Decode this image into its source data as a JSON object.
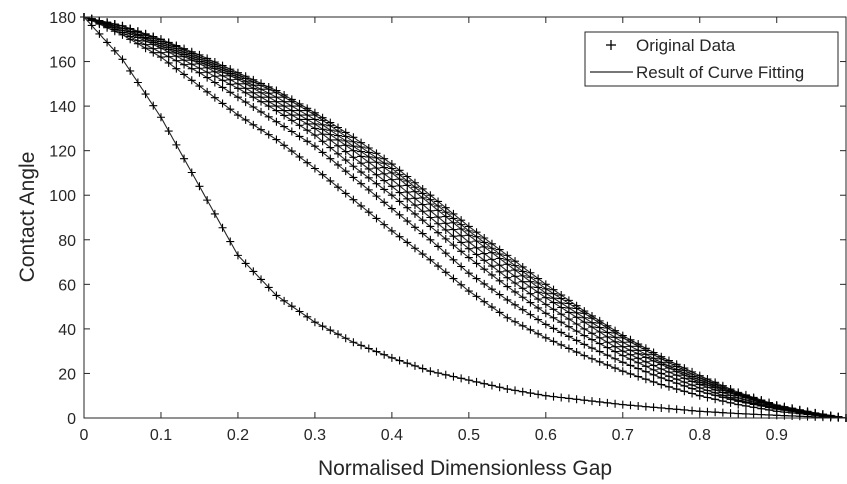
{
  "chart_data": {
    "type": "line",
    "title": "",
    "xlabel": "Normalised Dimensionless Gap",
    "ylabel": "Contact Angle",
    "xlim": [
      0,
      0.99
    ],
    "ylim": [
      0,
      180
    ],
    "xticks": [
      0,
      0.1,
      0.2,
      0.3,
      0.4,
      0.5,
      0.6,
      0.7,
      0.8,
      0.9
    ],
    "xtick_labels": [
      "0",
      "0.1",
      "0.2",
      "0.3",
      "0.4",
      "0.5",
      "0.6",
      "0.7",
      "0.8",
      "0.9"
    ],
    "yticks": [
      0,
      20,
      40,
      60,
      80,
      100,
      120,
      140,
      160,
      180
    ],
    "ytick_labels": [
      "0",
      "20",
      "40",
      "60",
      "80",
      "100",
      "120",
      "140",
      "160",
      "180"
    ],
    "grid": false,
    "legend_position": "top-right",
    "legend": [
      {
        "label": "Original Data",
        "marker": "+"
      },
      {
        "label": "Result of Curve Fitting",
        "marker": "line"
      }
    ],
    "colors": {
      "data": "#000000",
      "fit": "#262626",
      "axes": "#262626"
    },
    "series": [
      {
        "x": [
          0,
          0.05,
          0.1,
          0.15,
          0.2,
          0.25,
          0.3,
          0.35,
          0.4,
          0.45,
          0.5,
          0.55,
          0.6,
          0.65,
          0.7,
          0.75,
          0.8,
          0.85,
          0.9,
          0.95,
          0.99
        ],
        "y": [
          180,
          161,
          135,
          104,
          73,
          55,
          43,
          34,
          27,
          21,
          17,
          13,
          10,
          8,
          6,
          4.5,
          3,
          2,
          1.2,
          0.5,
          0
        ]
      },
      {
        "x": [
          0,
          0.05,
          0.1,
          0.15,
          0.2,
          0.25,
          0.3,
          0.35,
          0.4,
          0.45,
          0.5,
          0.55,
          0.6,
          0.65,
          0.7,
          0.75,
          0.8,
          0.85,
          0.9,
          0.95,
          0.99
        ],
        "y": [
          180,
          172,
          162,
          149,
          136,
          125,
          112,
          98,
          84,
          71,
          57,
          45,
          36,
          28,
          21,
          15,
          10,
          6,
          3,
          1.2,
          0
        ]
      },
      {
        "x": [
          0,
          0.05,
          0.1,
          0.15,
          0.2,
          0.25,
          0.3,
          0.35,
          0.4,
          0.45,
          0.5,
          0.55,
          0.6,
          0.65,
          0.7,
          0.75,
          0.8,
          0.85,
          0.9,
          0.95,
          0.99
        ],
        "y": [
          180,
          173,
          164,
          155,
          144,
          133,
          122,
          108,
          94,
          80,
          65,
          53,
          42,
          33,
          25,
          18,
          12,
          7.5,
          4,
          1.5,
          0
        ]
      },
      {
        "x": [
          0,
          0.05,
          0.1,
          0.15,
          0.2,
          0.25,
          0.3,
          0.35,
          0.4,
          0.45,
          0.5,
          0.55,
          0.6,
          0.65,
          0.7,
          0.75,
          0.8,
          0.85,
          0.9,
          0.95,
          0.99
        ],
        "y": [
          180,
          174,
          166,
          157,
          148,
          138,
          127,
          113,
          100,
          86,
          72,
          59,
          47,
          37,
          28,
          20,
          13.5,
          8,
          4.2,
          1.7,
          0
        ]
      },
      {
        "x": [
          0,
          0.05,
          0.1,
          0.15,
          0.2,
          0.25,
          0.3,
          0.35,
          0.4,
          0.45,
          0.5,
          0.55,
          0.6,
          0.65,
          0.7,
          0.75,
          0.8,
          0.85,
          0.9,
          0.95,
          0.99
        ],
        "y": [
          180,
          175,
          167,
          159,
          150,
          140,
          130,
          117,
          104,
          90,
          76,
          63,
          51,
          40,
          30,
          22,
          15,
          9,
          4.5,
          1.8,
          0
        ]
      },
      {
        "x": [
          0,
          0.05,
          0.1,
          0.15,
          0.2,
          0.25,
          0.3,
          0.35,
          0.4,
          0.45,
          0.5,
          0.55,
          0.6,
          0.65,
          0.7,
          0.75,
          0.8,
          0.85,
          0.9,
          0.95,
          0.99
        ],
        "y": [
          180,
          175,
          168,
          160,
          152,
          142,
          132,
          120,
          107,
          93,
          79,
          66,
          54,
          43,
          32,
          24,
          16,
          10,
          5,
          2,
          0
        ]
      },
      {
        "x": [
          0,
          0.05,
          0.1,
          0.15,
          0.2,
          0.25,
          0.3,
          0.35,
          0.4,
          0.45,
          0.5,
          0.55,
          0.6,
          0.65,
          0.7,
          0.75,
          0.8,
          0.85,
          0.9,
          0.95,
          0.99
        ],
        "y": [
          180,
          176,
          169,
          161,
          153,
          144,
          134,
          122,
          110,
          96,
          82,
          69,
          56,
          45,
          34,
          25,
          17,
          10.5,
          5.3,
          2.1,
          0
        ]
      },
      {
        "x": [
          0,
          0.05,
          0.1,
          0.15,
          0.2,
          0.25,
          0.3,
          0.35,
          0.4,
          0.45,
          0.5,
          0.55,
          0.6,
          0.65,
          0.7,
          0.75,
          0.8,
          0.85,
          0.9,
          0.95,
          0.99
        ],
        "y": [
          180,
          176,
          170,
          162,
          154,
          146,
          136,
          124,
          112,
          98,
          84,
          71,
          58,
          47,
          36,
          26.5,
          18,
          11,
          5.6,
          2.2,
          0
        ]
      },
      {
        "x": [
          0,
          0.05,
          0.1,
          0.15,
          0.2,
          0.25,
          0.3,
          0.35,
          0.4,
          0.45,
          0.5,
          0.55,
          0.6,
          0.65,
          0.7,
          0.75,
          0.8,
          0.85,
          0.9,
          0.95,
          0.99
        ],
        "y": [
          180,
          176,
          170,
          163,
          155,
          147,
          137,
          126,
          114,
          100,
          86,
          73,
          60,
          48,
          37,
          27.5,
          19,
          11.5,
          5.8,
          2.3,
          0
        ]
      }
    ]
  }
}
